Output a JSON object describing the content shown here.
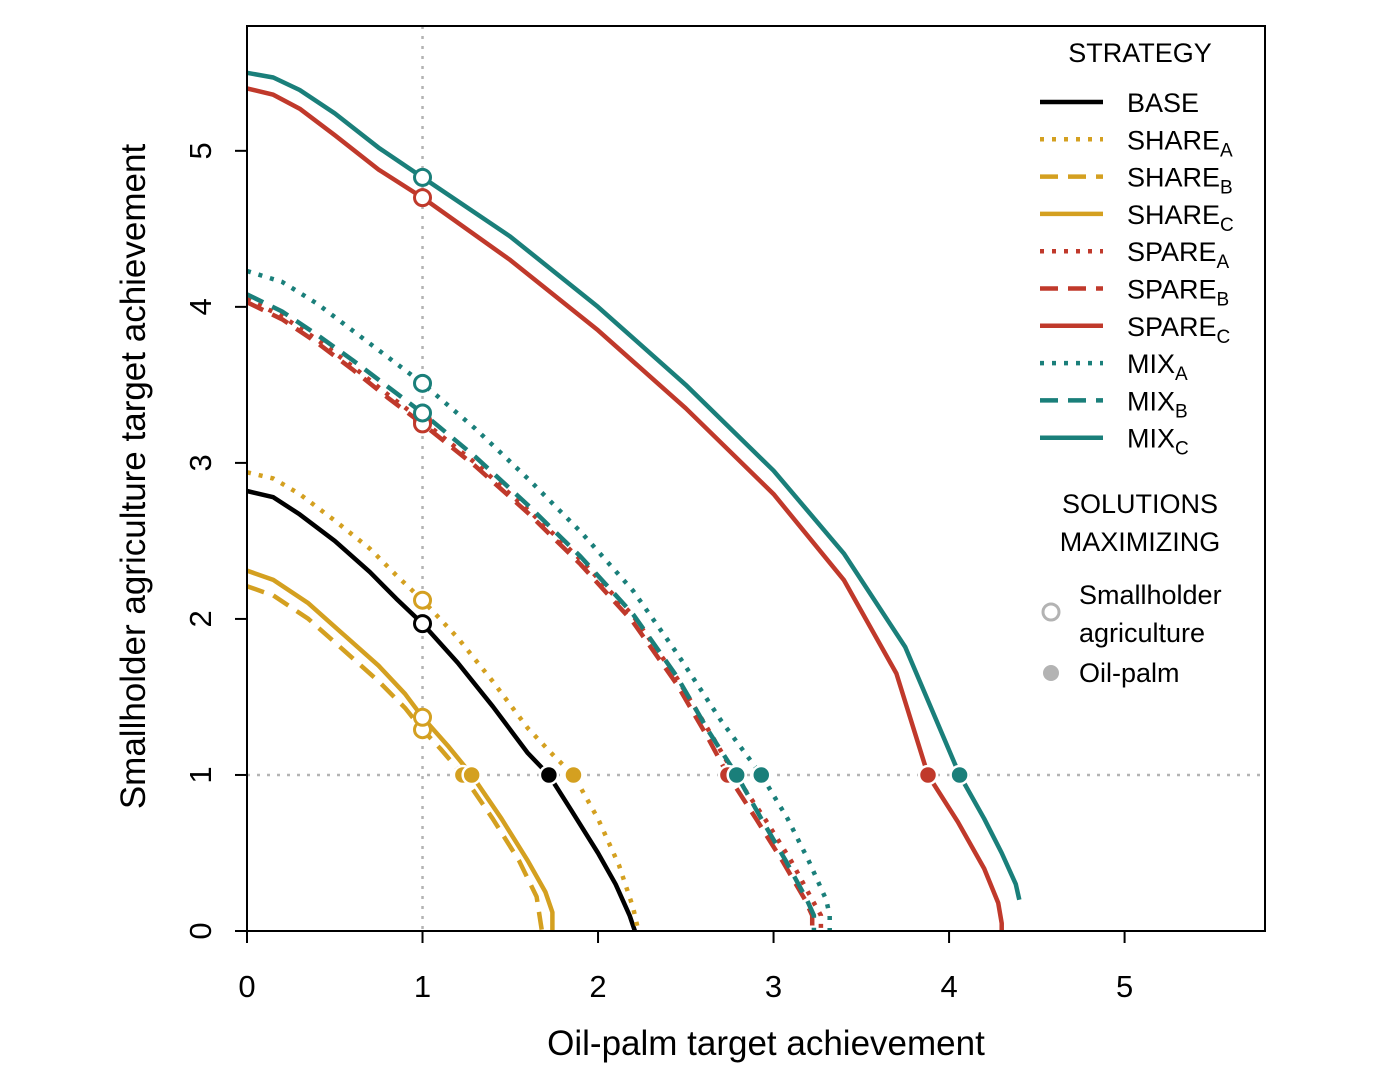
{
  "chart_data": {
    "type": "line",
    "xlabel": "Oil-palm target achievement",
    "ylabel": "Smallholder agriculture target achievement",
    "xlim": [
      0,
      5.8
    ],
    "ylim": [
      0,
      5.8
    ],
    "xticks": [
      "0",
      "1",
      "2",
      "3",
      "4",
      "5"
    ],
    "yticks": [
      "0",
      "1",
      "2",
      "3",
      "4",
      "5"
    ],
    "reference_lines": {
      "x": 1,
      "y": 1,
      "style": "dotted",
      "color": "#b3b3b3"
    },
    "legend": {
      "title": "STRATEGY",
      "solutions_title_line1": "SOLUTIONS",
      "solutions_title_line2": "MAXIMIZING",
      "solutions": [
        {
          "label_line1": "Smallholder",
          "label_line2": "agriculture",
          "marker": "open"
        },
        {
          "label_line1": "Oil-palm",
          "label_line2": "",
          "marker": "filled"
        }
      ]
    },
    "series": [
      {
        "name": "BASE",
        "base": "BASE",
        "sub": "",
        "color": "#000000",
        "dash": "solid",
        "points": [
          [
            0,
            2.82
          ],
          [
            0.15,
            2.78
          ],
          [
            0.3,
            2.67
          ],
          [
            0.5,
            2.5
          ],
          [
            0.7,
            2.3
          ],
          [
            0.85,
            2.13
          ],
          [
            1,
            1.97
          ],
          [
            1.2,
            1.72
          ],
          [
            1.4,
            1.44
          ],
          [
            1.6,
            1.14
          ],
          [
            1.72,
            1.0
          ],
          [
            1.85,
            0.77
          ],
          [
            2.0,
            0.5
          ],
          [
            2.1,
            0.3
          ],
          [
            2.18,
            0.1
          ],
          [
            2.21,
            0
          ]
        ],
        "open_marker": [
          1,
          1.97
        ],
        "filled_marker": [
          1.72,
          1.0
        ]
      },
      {
        "name": "SHAREA",
        "base": "SHARE",
        "sub": "A",
        "color": "#d4a020",
        "dash": "dot",
        "points": [
          [
            0,
            2.94
          ],
          [
            0.15,
            2.9
          ],
          [
            0.3,
            2.8
          ],
          [
            0.5,
            2.63
          ],
          [
            0.7,
            2.45
          ],
          [
            0.85,
            2.28
          ],
          [
            1,
            2.12
          ],
          [
            1.2,
            1.88
          ],
          [
            1.4,
            1.6
          ],
          [
            1.6,
            1.3
          ],
          [
            1.75,
            1.12
          ],
          [
            1.86,
            1.0
          ],
          [
            2.0,
            0.72
          ],
          [
            2.12,
            0.42
          ],
          [
            2.2,
            0.15
          ],
          [
            2.23,
            0
          ]
        ],
        "open_marker": [
          1,
          2.12
        ],
        "filled_marker": [
          1.86,
          1.0
        ]
      },
      {
        "name": "SHAREB",
        "base": "SHARE",
        "sub": "B",
        "color": "#d4a020",
        "dash": "dash",
        "points": [
          [
            0,
            2.21
          ],
          [
            0.15,
            2.15
          ],
          [
            0.35,
            2.0
          ],
          [
            0.55,
            1.8
          ],
          [
            0.75,
            1.6
          ],
          [
            0.9,
            1.43
          ],
          [
            1,
            1.29
          ],
          [
            1.1,
            1.17
          ],
          [
            1.23,
            1.0
          ],
          [
            1.4,
            0.72
          ],
          [
            1.55,
            0.45
          ],
          [
            1.65,
            0.22
          ],
          [
            1.68,
            0
          ]
        ],
        "open_marker": [
          1,
          1.29
        ],
        "filled_marker": [
          1.23,
          1.0
        ]
      },
      {
        "name": "SHAREC",
        "base": "SHARE",
        "sub": "C",
        "color": "#d4a020",
        "dash": "solid",
        "points": [
          [
            0,
            2.31
          ],
          [
            0.15,
            2.25
          ],
          [
            0.35,
            2.1
          ],
          [
            0.55,
            1.9
          ],
          [
            0.75,
            1.7
          ],
          [
            0.9,
            1.52
          ],
          [
            1,
            1.37
          ],
          [
            1.15,
            1.18
          ],
          [
            1.28,
            1.0
          ],
          [
            1.45,
            0.72
          ],
          [
            1.6,
            0.45
          ],
          [
            1.7,
            0.25
          ],
          [
            1.74,
            0.12
          ],
          [
            1.74,
            0
          ]
        ],
        "open_marker": [
          1,
          1.37
        ],
        "filled_marker": [
          1.28,
          1.0
        ]
      },
      {
        "name": "SPAREA",
        "base": "SPARE",
        "sub": "A",
        "color": "#c0392b",
        "dash": "dot",
        "points": [
          [
            0,
            4.05
          ],
          [
            0.2,
            3.94
          ],
          [
            0.4,
            3.79
          ],
          [
            0.6,
            3.62
          ],
          [
            0.8,
            3.44
          ],
          [
            1,
            3.27
          ],
          [
            1.3,
            3.0
          ],
          [
            1.6,
            2.7
          ],
          [
            1.9,
            2.38
          ],
          [
            2.2,
            2.02
          ],
          [
            2.45,
            1.62
          ],
          [
            2.65,
            1.25
          ],
          [
            2.78,
            1.0
          ],
          [
            2.95,
            0.72
          ],
          [
            3.1,
            0.45
          ],
          [
            3.22,
            0.2
          ],
          [
            3.27,
            0.1
          ],
          [
            3.27,
            0
          ]
        ],
        "open_marker": [
          1,
          3.27
        ],
        "filled_marker": [
          2.78,
          1.0
        ]
      },
      {
        "name": "SPAREB",
        "base": "SPARE",
        "sub": "B",
        "color": "#c0392b",
        "dash": "dash",
        "points": [
          [
            0,
            4.03
          ],
          [
            0.2,
            3.92
          ],
          [
            0.4,
            3.77
          ],
          [
            0.6,
            3.6
          ],
          [
            0.8,
            3.42
          ],
          [
            1,
            3.25
          ],
          [
            1.3,
            2.98
          ],
          [
            1.6,
            2.68
          ],
          [
            1.9,
            2.35
          ],
          [
            2.2,
            1.98
          ],
          [
            2.45,
            1.58
          ],
          [
            2.62,
            1.25
          ],
          [
            2.74,
            1.0
          ],
          [
            2.9,
            0.72
          ],
          [
            3.05,
            0.45
          ],
          [
            3.18,
            0.2
          ],
          [
            3.22,
            0.1
          ],
          [
            3.22,
            0
          ]
        ],
        "open_marker": [
          1,
          3.25
        ],
        "filled_marker": [
          2.74,
          1.0
        ]
      },
      {
        "name": "SPAREC",
        "base": "SPARE",
        "sub": "C",
        "color": "#c0392b",
        "dash": "solid",
        "points": [
          [
            0,
            5.4
          ],
          [
            0.15,
            5.36
          ],
          [
            0.3,
            5.27
          ],
          [
            0.5,
            5.1
          ],
          [
            0.75,
            4.88
          ],
          [
            1,
            4.7
          ],
          [
            1.5,
            4.3
          ],
          [
            2.0,
            3.85
          ],
          [
            2.5,
            3.35
          ],
          [
            3.0,
            2.8
          ],
          [
            3.4,
            2.25
          ],
          [
            3.7,
            1.65
          ],
          [
            3.88,
            1.0
          ],
          [
            4.05,
            0.7
          ],
          [
            4.2,
            0.4
          ],
          [
            4.28,
            0.18
          ],
          [
            4.3,
            0.05
          ],
          [
            4.3,
            0
          ]
        ],
        "open_marker": [
          1,
          4.7
        ],
        "filled_marker": [
          3.88,
          1.0
        ]
      },
      {
        "name": "MIXA",
        "base": "MIX",
        "sub": "A",
        "color": "#1a7f7a",
        "dash": "dot",
        "points": [
          [
            0,
            4.23
          ],
          [
            0.2,
            4.16
          ],
          [
            0.4,
            4.02
          ],
          [
            0.6,
            3.85
          ],
          [
            0.8,
            3.68
          ],
          [
            1,
            3.51
          ],
          [
            1.3,
            3.22
          ],
          [
            1.6,
            2.9
          ],
          [
            1.9,
            2.56
          ],
          [
            2.2,
            2.18
          ],
          [
            2.45,
            1.78
          ],
          [
            2.7,
            1.35
          ],
          [
            2.93,
            1.0
          ],
          [
            3.08,
            0.72
          ],
          [
            3.2,
            0.45
          ],
          [
            3.3,
            0.2
          ],
          [
            3.32,
            0.1
          ],
          [
            3.32,
            0
          ]
        ],
        "open_marker": [
          1,
          3.51
        ],
        "filled_marker": [
          2.93,
          1.0
        ]
      },
      {
        "name": "MIXB",
        "base": "MIX",
        "sub": "B",
        "color": "#1a7f7a",
        "dash": "dash",
        "points": [
          [
            0,
            4.08
          ],
          [
            0.2,
            3.97
          ],
          [
            0.4,
            3.82
          ],
          [
            0.6,
            3.66
          ],
          [
            0.8,
            3.49
          ],
          [
            1,
            3.32
          ],
          [
            1.3,
            3.04
          ],
          [
            1.6,
            2.73
          ],
          [
            1.9,
            2.4
          ],
          [
            2.2,
            2.03
          ],
          [
            2.45,
            1.63
          ],
          [
            2.63,
            1.28
          ],
          [
            2.79,
            1.0
          ],
          [
            2.93,
            0.72
          ],
          [
            3.07,
            0.45
          ],
          [
            3.19,
            0.2
          ],
          [
            3.23,
            0.1
          ],
          [
            3.23,
            0
          ]
        ],
        "open_marker": [
          1,
          3.32
        ],
        "filled_marker": [
          2.79,
          1.0
        ]
      },
      {
        "name": "MIXC",
        "base": "MIX",
        "sub": "C",
        "color": "#1a7f7a",
        "dash": "solid",
        "points": [
          [
            0,
            5.5
          ],
          [
            0.15,
            5.47
          ],
          [
            0.3,
            5.39
          ],
          [
            0.5,
            5.24
          ],
          [
            0.75,
            5.02
          ],
          [
            1,
            4.83
          ],
          [
            1.5,
            4.45
          ],
          [
            2.0,
            4.0
          ],
          [
            2.5,
            3.5
          ],
          [
            3.0,
            2.95
          ],
          [
            3.4,
            2.42
          ],
          [
            3.75,
            1.82
          ],
          [
            4.06,
            1.0
          ],
          [
            4.2,
            0.72
          ],
          [
            4.3,
            0.5
          ],
          [
            4.38,
            0.3
          ],
          [
            4.4,
            0.2
          ],
          [
            4.4,
            0.2
          ]
        ],
        "open_marker": [
          1,
          4.83
        ],
        "filled_marker": [
          4.06,
          1.0
        ]
      }
    ]
  }
}
